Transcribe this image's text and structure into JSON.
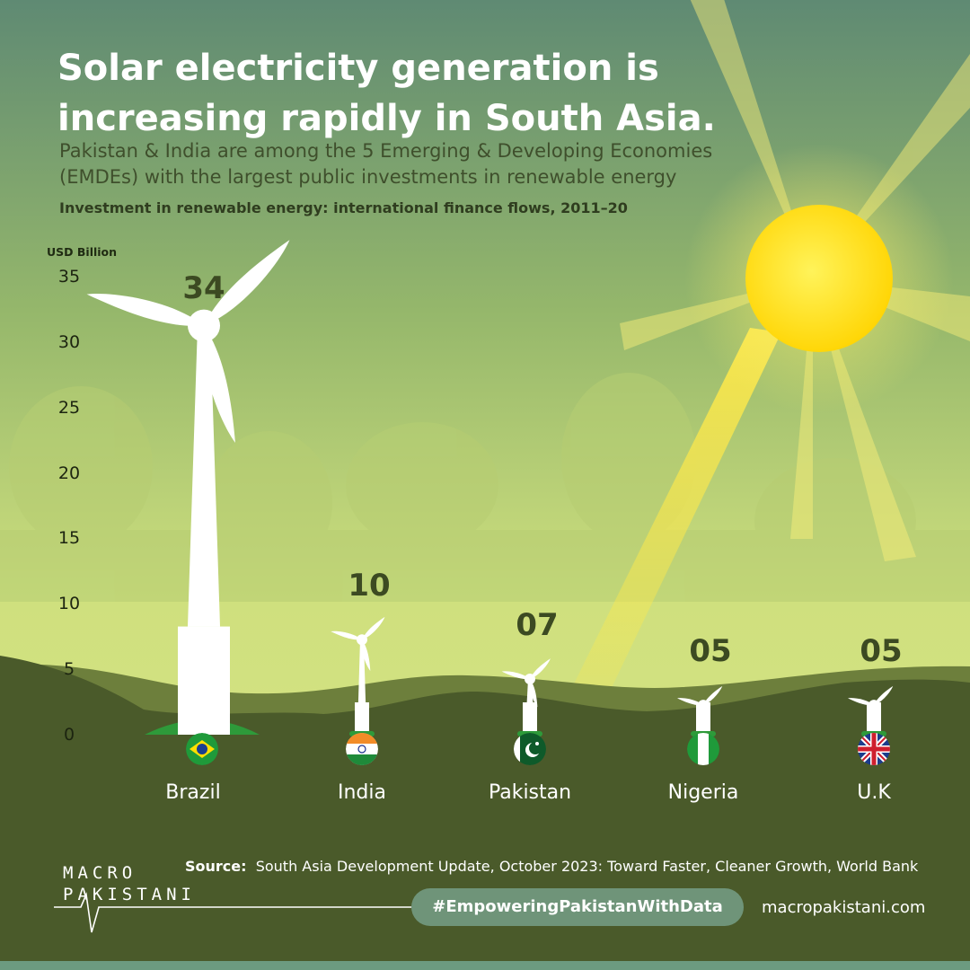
{
  "header": {
    "title": "Solar electricity generation is increasing rapidly in South Asia.",
    "subtitle": "Pakistan & India are among the 5 Emerging & Developing Economies (EMDEs) with the largest public investments in renewable energy"
  },
  "chart_data": {
    "type": "bar",
    "title": "Investment in renewable energy: international finance flows, 2011–20",
    "ylabel": "USD Billion",
    "ylim": [
      0,
      35
    ],
    "yticks": [
      "0",
      "5",
      "10",
      "15",
      "20",
      "25",
      "30",
      "35"
    ],
    "grid": false,
    "categories": [
      "Brazil",
      "India",
      "Pakistan",
      "Nigeria",
      "U.K"
    ],
    "values": [
      34,
      10,
      7,
      5,
      5
    ],
    "value_labels": [
      "34",
      "10",
      "07",
      "05",
      "05"
    ]
  },
  "flags": [
    "brazil-flag-icon",
    "india-flag-icon",
    "pakistan-flag-icon",
    "nigeria-flag-icon",
    "uk-flag-icon"
  ],
  "footer": {
    "source_label": "Source:",
    "source_text": "South Asia Development Update, October 2023: Toward Faster, Cleaner Growth, World Bank",
    "hashtag": "#EmpoweringPakistanWithData",
    "website": "macropakistani.com",
    "logo_line1": "MACRO",
    "logo_line2": "PAKISTANI"
  },
  "colors": {
    "sky_top": "#5f8a73",
    "sky_mid": "#a3c168",
    "sky_bottom": "#cfe07e",
    "ground": "#4a5a2a",
    "sun": "#ffe21a",
    "turbine": "#ffffff",
    "value_text": "#3c4a22",
    "hashtag_pill": "#6f9479",
    "strip": "#6c9b80"
  }
}
